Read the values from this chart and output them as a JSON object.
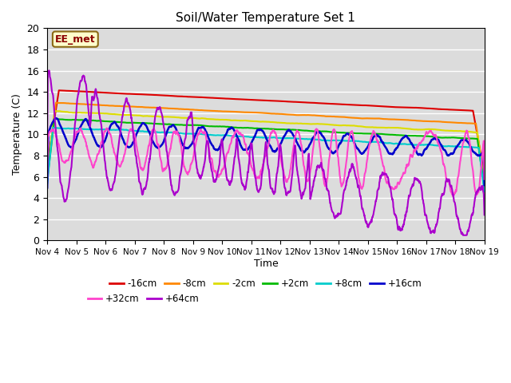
{
  "title": "Soil/Water Temperature Set 1",
  "xlabel": "Time",
  "ylabel": "Temperature (C)",
  "ylim": [
    0,
    20
  ],
  "background_color": "#dcdcdc",
  "annotation_text": "EE_met",
  "annotation_color": "#8B0000",
  "annotation_bg": "#ffffcc",
  "annotation_border": "#8B6914",
  "series": {
    "-16cm": {
      "color": "#dd0000",
      "linewidth": 1.5
    },
    "-8cm": {
      "color": "#ff8800",
      "linewidth": 1.5
    },
    "-2cm": {
      "color": "#dddd00",
      "linewidth": 1.5
    },
    "+2cm": {
      "color": "#00bb00",
      "linewidth": 1.5
    },
    "+8cm": {
      "color": "#00cccc",
      "linewidth": 1.5
    },
    "+16cm": {
      "color": "#0000cc",
      "linewidth": 1.8
    },
    "+32cm": {
      "color": "#ff44cc",
      "linewidth": 1.5
    },
    "+64cm": {
      "color": "#aa00cc",
      "linewidth": 1.5
    }
  },
  "xtick_labels": [
    "Nov 4",
    "Nov 5",
    "Nov 6",
    "Nov 7",
    "Nov 8",
    "Nov 9",
    "Nov 10",
    "Nov 11",
    "Nov 12",
    "Nov 13",
    "Nov 14",
    "Nov 15",
    "Nov 16",
    "Nov 17",
    "Nov 18",
    "Nov 19"
  ],
  "legend_row1": [
    "-16cm",
    "-8cm",
    "-2cm",
    "+2cm",
    "+8cm",
    "+16cm"
  ],
  "legend_row2": [
    "+32cm",
    "+64cm"
  ]
}
